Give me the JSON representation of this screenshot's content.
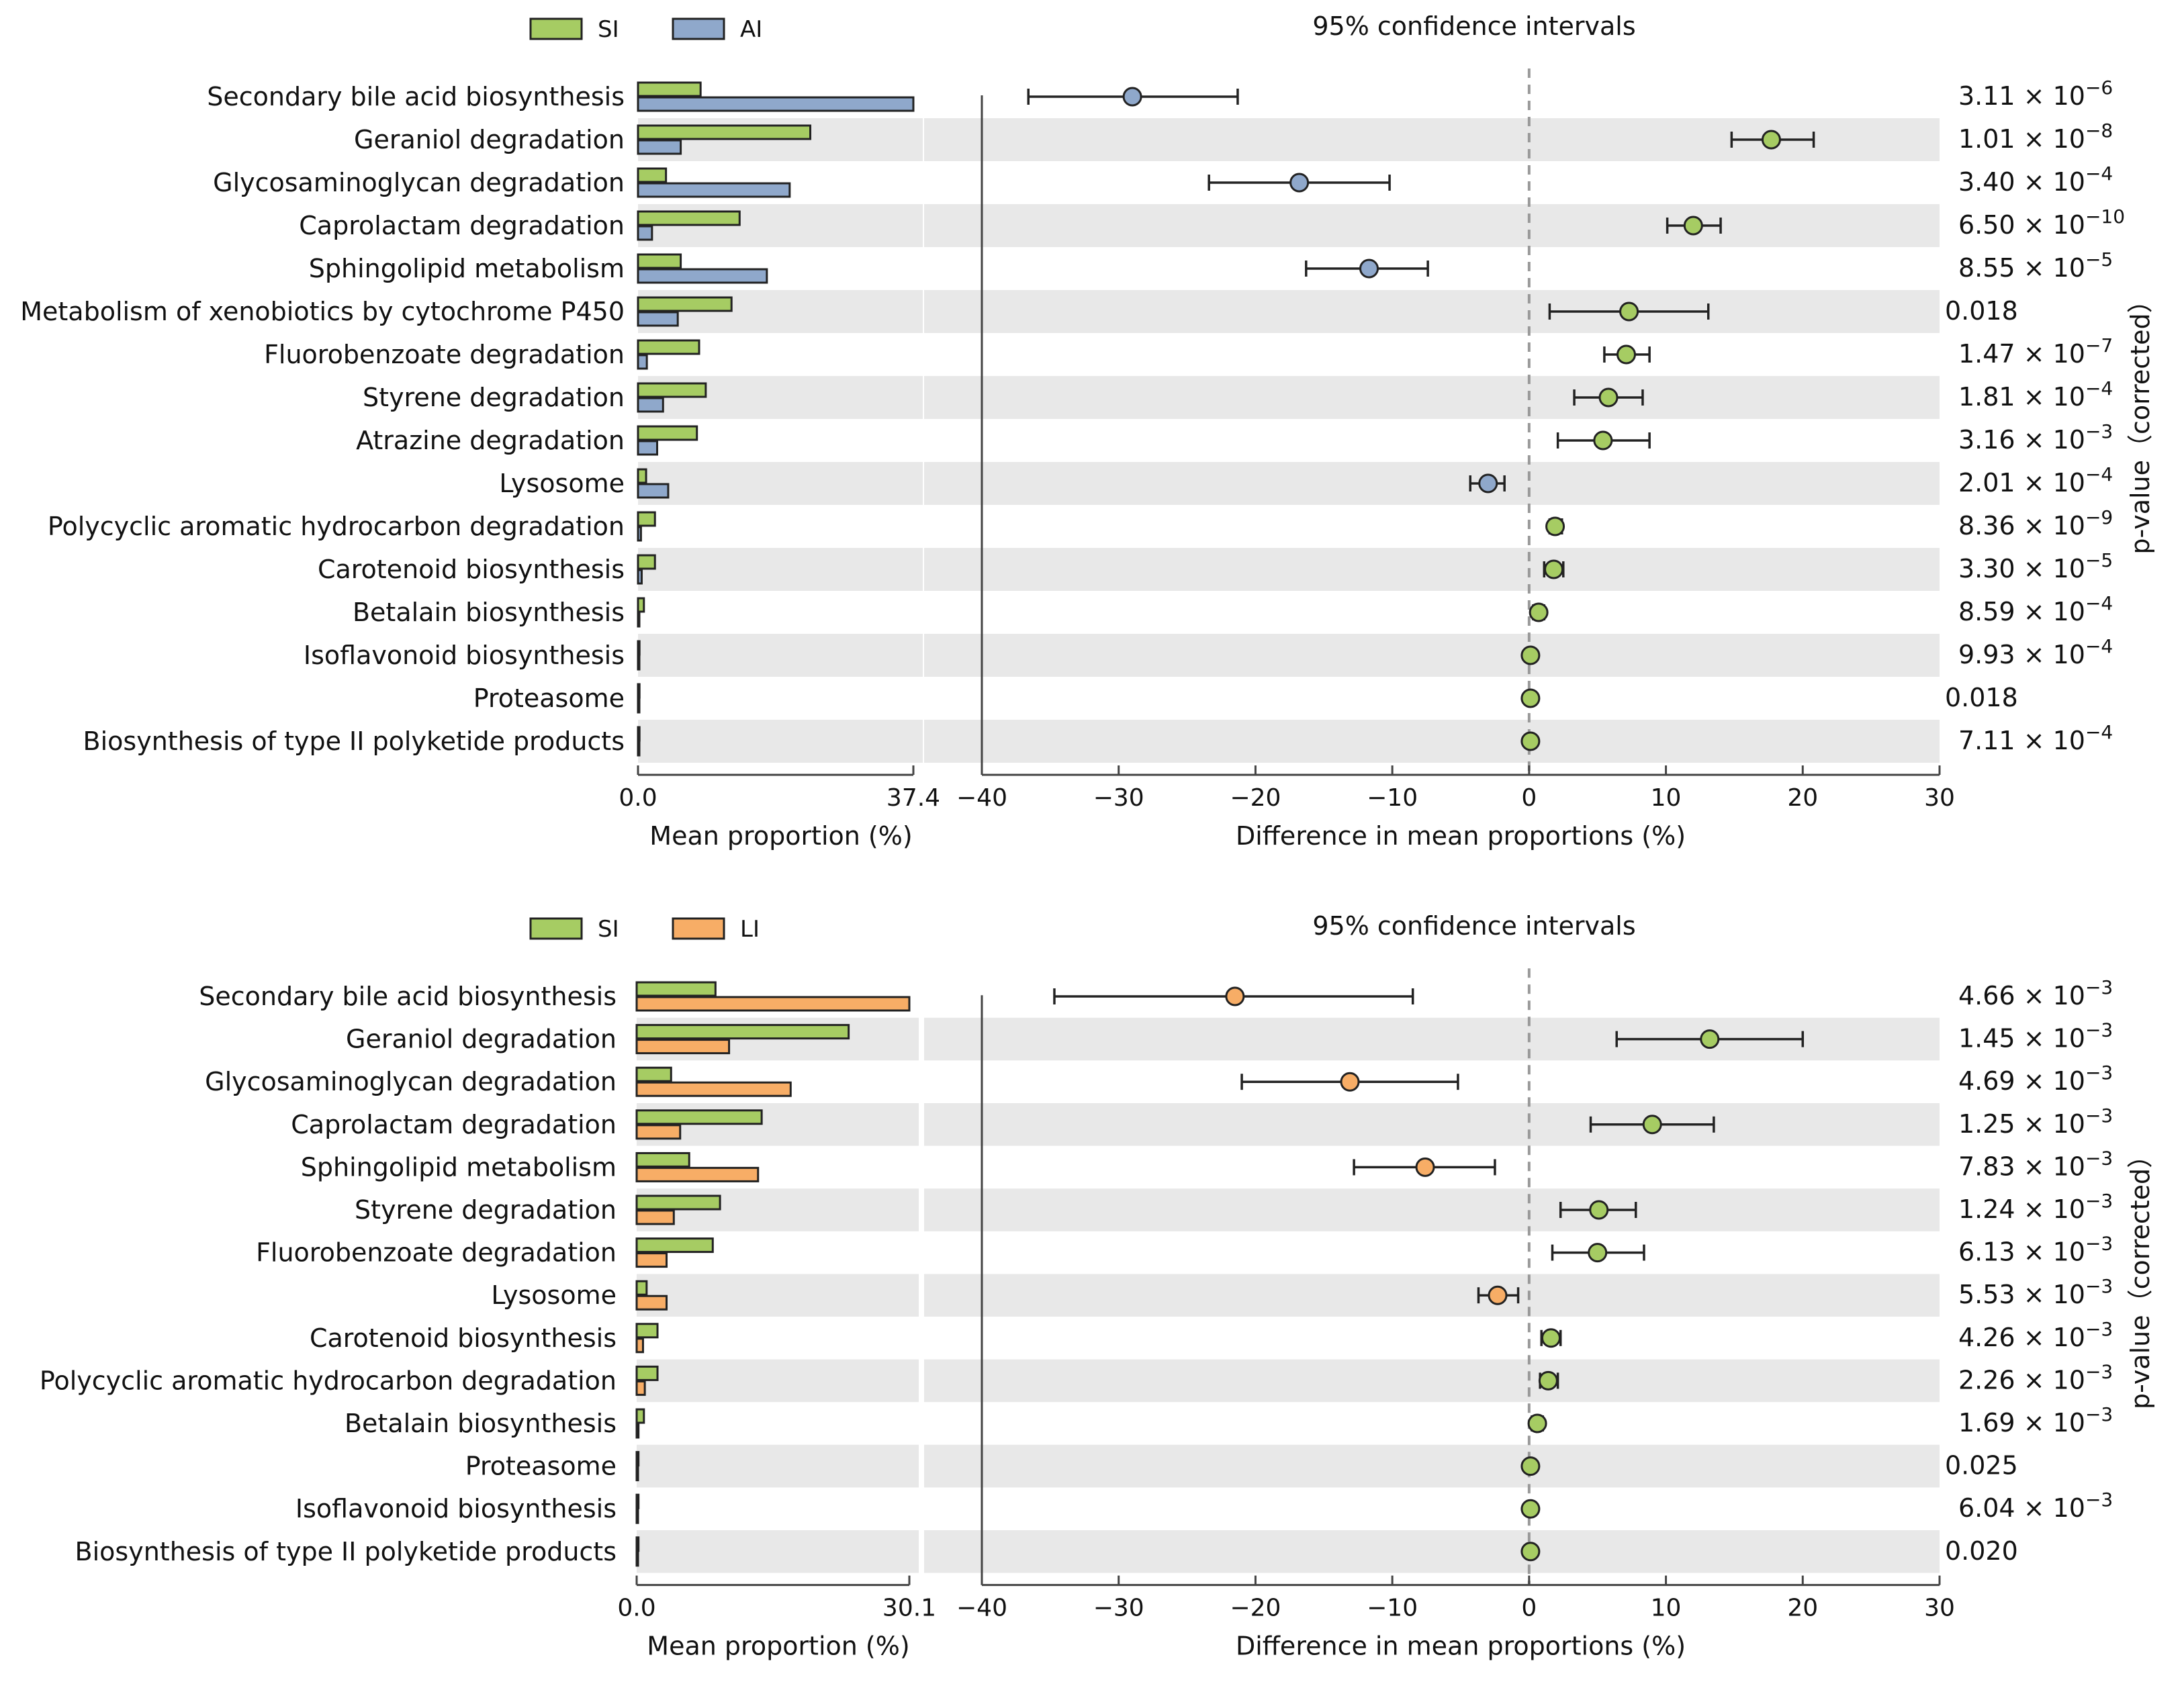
{
  "colors": {
    "SI": "#a6cc63",
    "AI": "#8fa8cb",
    "LI": "#f7ad66",
    "stripe": "#e8e8e8",
    "zero_line": "#999999"
  },
  "chart_data": [
    {
      "type": "extended_error_bar",
      "panel": "top",
      "legend": [
        {
          "name": "SI",
          "color_key": "SI"
        },
        {
          "name": "AI",
          "color_key": "AI"
        }
      ],
      "ci_title": "95% confidence intervals",
      "bar_axis": {
        "xlabel": "Mean proportion (%)",
        "xlim": [
          0.0,
          37.4
        ],
        "tick_labels": [
          "0.0",
          "37.4"
        ]
      },
      "diff_axis": {
        "xlabel": "Difference in mean proportions (%)",
        "xlim": [
          -40,
          30
        ],
        "ticks": [
          -40,
          -30,
          -20,
          -10,
          0,
          10,
          20,
          30
        ],
        "tick_labels": [
          "−40",
          "−30",
          "−20",
          "−10",
          "0",
          "10",
          "20",
          "30"
        ]
      },
      "pvalue_label": "p-value（corrected）",
      "rows": [
        {
          "name": "Secondary bile acid biosynthesis",
          "g1": 8.5,
          "g2": 37.4,
          "diff": -29.0,
          "ci": [
            -36.6,
            -21.3
          ],
          "higher": "AI",
          "p_man": "3.11 × 10",
          "p_exp": "−6",
          "p_plain": ""
        },
        {
          "name": "Geraniol degradation",
          "g1": 23.4,
          "g2": 5.8,
          "diff": 17.7,
          "ci": [
            14.8,
            20.8
          ],
          "higher": "SI",
          "p_man": "1.01 × 10",
          "p_exp": "−8",
          "p_plain": ""
        },
        {
          "name": "Glycosaminoglycan degradation",
          "g1": 3.8,
          "g2": 20.6,
          "diff": -16.8,
          "ci": [
            -23.4,
            -10.2
          ],
          "higher": "AI",
          "p_man": "3.40 × 10",
          "p_exp": "−4",
          "p_plain": ""
        },
        {
          "name": "Caprolactam degradation",
          "g1": 13.8,
          "g2": 1.9,
          "diff": 12.0,
          "ci": [
            10.1,
            14.0
          ],
          "higher": "SI",
          "p_man": "6.50 × 10",
          "p_exp": "−10",
          "p_plain": ""
        },
        {
          "name": "Sphingolipid metabolism",
          "g1": 5.8,
          "g2": 17.5,
          "diff": -11.7,
          "ci": [
            -16.3,
            -7.4
          ],
          "higher": "AI",
          "p_man": "8.55 × 10",
          "p_exp": "−5",
          "p_plain": ""
        },
        {
          "name": "Metabolism of xenobiotics by cytochrome P450",
          "g1": 12.7,
          "g2": 5.4,
          "diff": 7.3,
          "ci": [
            1.5,
            13.1
          ],
          "higher": "SI",
          "p_man": "",
          "p_exp": "",
          "p_plain": "0.018"
        },
        {
          "name": "Fluorobenzoate degradation",
          "g1": 8.3,
          "g2": 1.2,
          "diff": 7.1,
          "ci": [
            5.5,
            8.8
          ],
          "higher": "SI",
          "p_man": "1.47 × 10",
          "p_exp": "−7",
          "p_plain": ""
        },
        {
          "name": "Styrene degradation",
          "g1": 9.2,
          "g2": 3.4,
          "diff": 5.8,
          "ci": [
            3.3,
            8.3
          ],
          "higher": "SI",
          "p_man": "1.81 × 10",
          "p_exp": "−4",
          "p_plain": ""
        },
        {
          "name": "Atrazine degradation",
          "g1": 8.0,
          "g2": 2.6,
          "diff": 5.4,
          "ci": [
            2.1,
            8.8
          ],
          "higher": "SI",
          "p_man": "3.16 × 10",
          "p_exp": "−3",
          "p_plain": ""
        },
        {
          "name": "Lysosome",
          "g1": 1.1,
          "g2": 4.1,
          "diff": -3.0,
          "ci": [
            -4.3,
            -1.8
          ],
          "higher": "AI",
          "p_man": "2.01 × 10",
          "p_exp": "−4",
          "p_plain": ""
        },
        {
          "name": "Polycyclic aromatic hydrocarbon degradation",
          "g1": 2.3,
          "g2": 0.4,
          "diff": 1.9,
          "ci": [
            1.5,
            2.4
          ],
          "higher": "SI",
          "p_man": "8.36 × 10",
          "p_exp": "−9",
          "p_plain": ""
        },
        {
          "name": "Carotenoid biosynthesis",
          "g1": 2.3,
          "g2": 0.5,
          "diff": 1.8,
          "ci": [
            1.1,
            2.5
          ],
          "higher": "SI",
          "p_man": "3.30 × 10",
          "p_exp": "−5",
          "p_plain": ""
        },
        {
          "name": "Betalain biosynthesis",
          "g1": 0.8,
          "g2": 0.1,
          "diff": 0.7,
          "ci": [
            0.3,
            1.1
          ],
          "higher": "SI",
          "p_man": "8.59 × 10",
          "p_exp": "−4",
          "p_plain": ""
        },
        {
          "name": "Isoflavonoid biosynthesis",
          "g1": 0.2,
          "g2": 0.1,
          "diff": 0.1,
          "ci": [
            -0.1,
            0.3
          ],
          "higher": "SI",
          "p_man": "9.93 × 10",
          "p_exp": "−4",
          "p_plain": ""
        },
        {
          "name": "Proteasome",
          "g1": 0.2,
          "g2": 0.1,
          "diff": 0.1,
          "ci": [
            -0.1,
            0.3
          ],
          "higher": "SI",
          "p_man": "",
          "p_exp": "",
          "p_plain": "0.018"
        },
        {
          "name": "Biosynthesis of type II polyketide products",
          "g1": 0.2,
          "g2": 0.1,
          "diff": 0.1,
          "ci": [
            -0.1,
            0.3
          ],
          "higher": "SI",
          "p_man": "7.11 × 10",
          "p_exp": "−4",
          "p_plain": ""
        }
      ]
    },
    {
      "type": "extended_error_bar",
      "panel": "bottom",
      "legend": [
        {
          "name": "SI",
          "color_key": "SI"
        },
        {
          "name": "LI",
          "color_key": "LI"
        }
      ],
      "ci_title": "95% confidence intervals",
      "bar_axis": {
        "xlabel": "Mean proportion (%)",
        "xlim": [
          0.0,
          30.1
        ],
        "tick_labels": [
          "0.0",
          "30.1"
        ]
      },
      "diff_axis": {
        "xlabel": "Difference in mean proportions (%)",
        "xlim": [
          -40,
          30
        ],
        "ticks": [
          -40,
          -30,
          -20,
          -10,
          0,
          10,
          20,
          30
        ],
        "tick_labels": [
          "−40",
          "−30",
          "−20",
          "−10",
          "0",
          "10",
          "20",
          "30"
        ]
      },
      "pvalue_label": "p-value（corrected）",
      "rows": [
        {
          "name": "Secondary bile acid biosynthesis",
          "g1": 8.7,
          "g2": 30.1,
          "diff": -21.5,
          "ci": [
            -34.7,
            -8.5
          ],
          "higher": "LI",
          "p_man": "4.66 × 10",
          "p_exp": "−3",
          "p_plain": ""
        },
        {
          "name": "Geraniol degradation",
          "g1": 23.4,
          "g2": 10.2,
          "diff": 13.2,
          "ci": [
            6.4,
            20.0
          ],
          "higher": "SI",
          "p_man": "1.45 × 10",
          "p_exp": "−3",
          "p_plain": ""
        },
        {
          "name": "Glycosaminoglycan degradation",
          "g1": 3.8,
          "g2": 17.0,
          "diff": -13.1,
          "ci": [
            -21.0,
            -5.2
          ],
          "higher": "LI",
          "p_man": "4.69 × 10",
          "p_exp": "−3",
          "p_plain": ""
        },
        {
          "name": "Caprolactam degradation",
          "g1": 13.8,
          "g2": 4.8,
          "diff": 9.0,
          "ci": [
            4.5,
            13.5
          ],
          "higher": "SI",
          "p_man": "1.25 × 10",
          "p_exp": "−3",
          "p_plain": ""
        },
        {
          "name": "Sphingolipid metabolism",
          "g1": 5.8,
          "g2": 13.4,
          "diff": -7.6,
          "ci": [
            -12.8,
            -2.5
          ],
          "higher": "LI",
          "p_man": "7.83 × 10",
          "p_exp": "−3",
          "p_plain": ""
        },
        {
          "name": "Styrene degradation",
          "g1": 9.2,
          "g2": 4.1,
          "diff": 5.1,
          "ci": [
            2.3,
            7.8
          ],
          "higher": "SI",
          "p_man": "1.24 × 10",
          "p_exp": "−3",
          "p_plain": ""
        },
        {
          "name": "Fluorobenzoate degradation",
          "g1": 8.4,
          "g2": 3.3,
          "diff": 5.0,
          "ci": [
            1.7,
            8.4
          ],
          "higher": "SI",
          "p_man": "6.13 × 10",
          "p_exp": "−3",
          "p_plain": ""
        },
        {
          "name": "Lysosome",
          "g1": 1.1,
          "g2": 3.3,
          "diff": -2.3,
          "ci": [
            -3.7,
            -0.8
          ],
          "higher": "LI",
          "p_man": "5.53 × 10",
          "p_exp": "−3",
          "p_plain": ""
        },
        {
          "name": "Carotenoid biosynthesis",
          "g1": 2.3,
          "g2": 0.7,
          "diff": 1.6,
          "ci": [
            0.9,
            2.3
          ],
          "higher": "SI",
          "p_man": "4.26 × 10",
          "p_exp": "−3",
          "p_plain": ""
        },
        {
          "name": "Polycyclic aromatic hydrocarbon degradation",
          "g1": 2.3,
          "g2": 0.9,
          "diff": 1.4,
          "ci": [
            0.8,
            2.1
          ],
          "higher": "SI",
          "p_man": "2.26 × 10",
          "p_exp": "−3",
          "p_plain": ""
        },
        {
          "name": "Betalain biosynthesis",
          "g1": 0.8,
          "g2": 0.2,
          "diff": 0.6,
          "ci": [
            0.2,
            1.0
          ],
          "higher": "SI",
          "p_man": "1.69 × 10",
          "p_exp": "−3",
          "p_plain": ""
        },
        {
          "name": "Proteasome",
          "g1": 0.2,
          "g2": 0.1,
          "diff": 0.1,
          "ci": [
            -0.1,
            0.3
          ],
          "higher": "SI",
          "p_man": "",
          "p_exp": "",
          "p_plain": "0.025"
        },
        {
          "name": "Isoflavonoid biosynthesis",
          "g1": 0.2,
          "g2": 0.1,
          "diff": 0.1,
          "ci": [
            -0.1,
            0.3
          ],
          "higher": "SI",
          "p_man": "6.04 × 10",
          "p_exp": "−3",
          "p_plain": ""
        },
        {
          "name": "Biosynthesis of type II polyketide products",
          "g1": 0.2,
          "g2": 0.1,
          "diff": 0.1,
          "ci": [
            -0.1,
            0.3
          ],
          "higher": "SI",
          "p_man": "",
          "p_exp": "",
          "p_plain": "0.020"
        }
      ]
    }
  ]
}
